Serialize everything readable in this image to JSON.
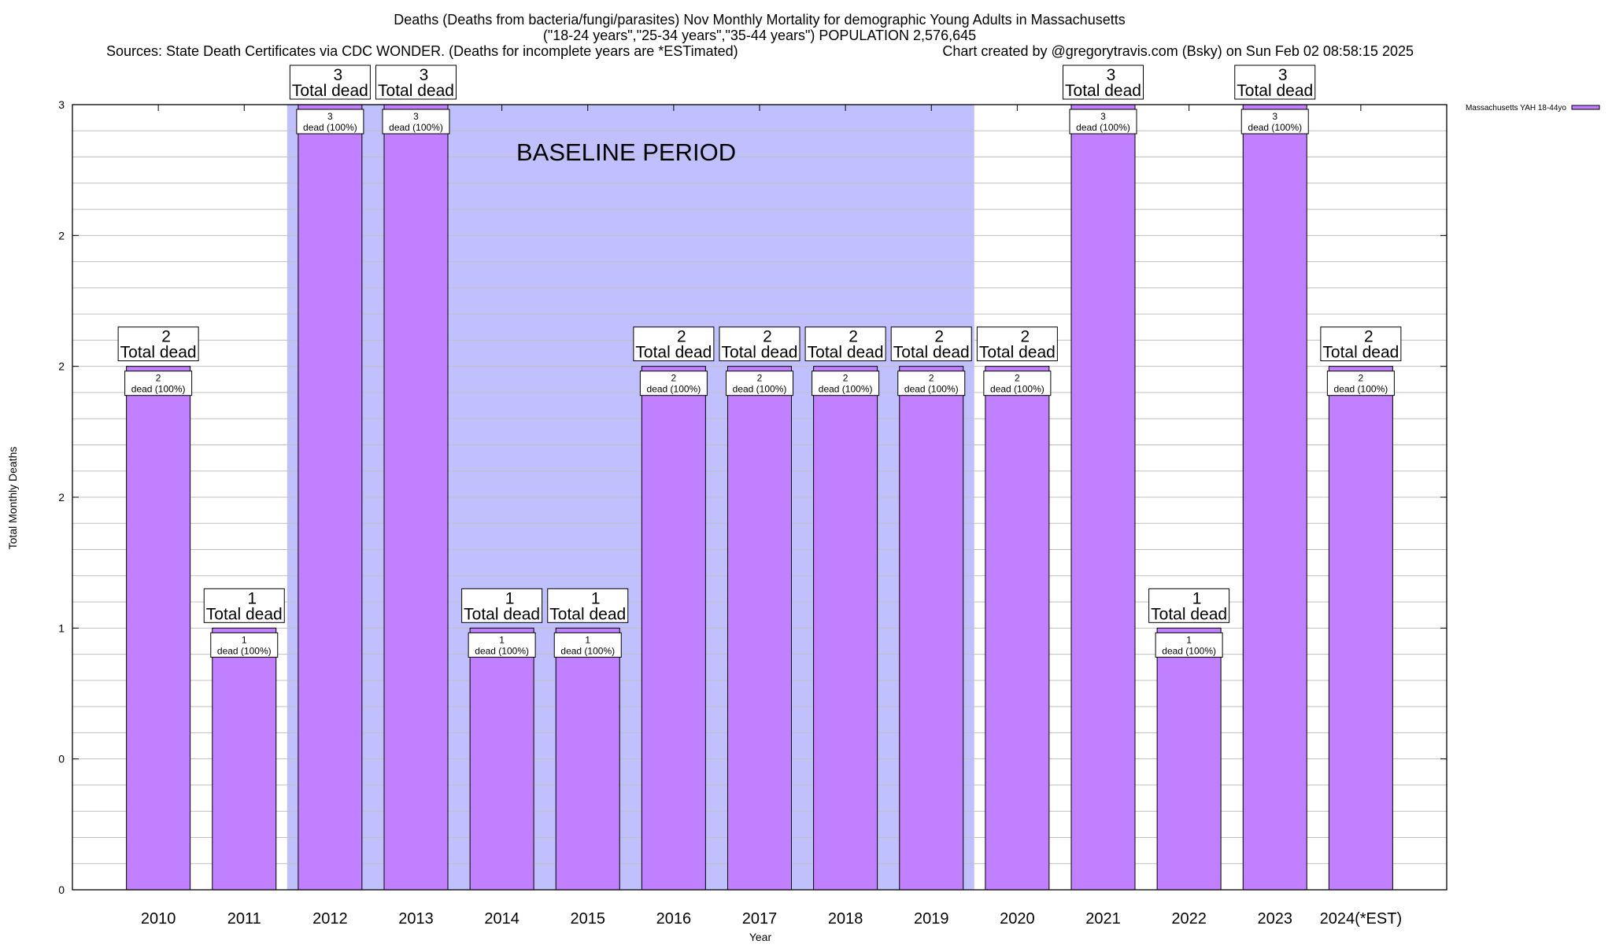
{
  "chart_data": {
    "type": "bar",
    "title_lines": [
      "Deaths (Deaths from bacteria/fungi/parasites) Nov Monthly Mortality for demographic Young Adults in Massachusetts",
      "(\"18-24 years\",\"25-34 years\",\"35-44 years\") POPULATION 2,576,645"
    ],
    "sources": "Sources: State Death Certificates via CDC WONDER. (Deaths for incomplete years are *ESTimated)",
    "credit": "Chart created by @gregorytravis.com (Bsky) on Sun Feb 02 08:58:15 2025",
    "xlabel": "Year",
    "ylabel": "Total Monthly Deaths",
    "ylim": [
      0,
      3
    ],
    "yticks": [
      0,
      0.5,
      1,
      1.5,
      2,
      2.5,
      3
    ],
    "ytick_labels": [
      "0",
      "0",
      "1",
      "2",
      "2",
      "2",
      "3"
    ],
    "grid": true,
    "categories": [
      "2010",
      "2011",
      "2012",
      "2013",
      "2014",
      "2015",
      "2016",
      "2017",
      "2018",
      "2019",
      "2020",
      "2021",
      "2022",
      "2023",
      "2024(*EST)"
    ],
    "series": [
      {
        "name": "Massachusetts YAH 18-44yo",
        "color": "#c080ff",
        "values": [
          2,
          1,
          3,
          3,
          1,
          1,
          2,
          2,
          2,
          2,
          2,
          3,
          1,
          3,
          2
        ]
      }
    ],
    "total_label_suffix": "Total dead",
    "inner_label_suffix": "dead (100%)",
    "baseline": {
      "label": "BASELINE PERIOD",
      "from": "2012",
      "to": "2019",
      "color": "#c0c0ff"
    },
    "legend_position": "top-right"
  }
}
